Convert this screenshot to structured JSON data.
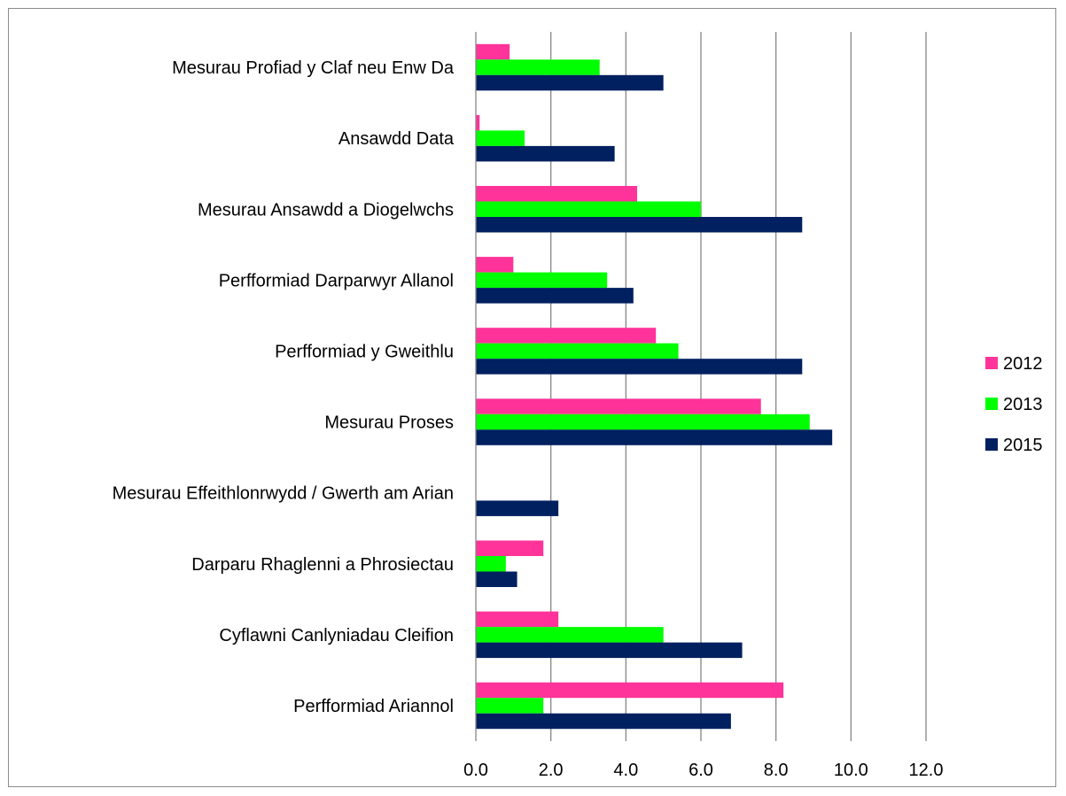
{
  "chart_data": {
    "type": "bar",
    "orientation": "horizontal",
    "categories": [
      "Mesurau Profiad y Claf neu Enw Da",
      "Ansawdd Data",
      "Mesurau Ansawdd a Diogelwchs",
      "Perfformiad Darparwyr Allanol",
      "Perfformiad y Gweithlu",
      "Mesurau Proses",
      "Mesurau Effeithlonrwydd / Gwerth am Arian",
      "Darparu Rhaglenni a Phrosiectau",
      "Cyflawni Canlyniadau Cleifion",
      "Perfformiad Ariannol"
    ],
    "series": [
      {
        "name": "2012",
        "color": "#ff3399",
        "values": [
          0.9,
          0.1,
          4.3,
          1.0,
          4.8,
          7.6,
          0,
          1.8,
          2.2,
          8.2
        ]
      },
      {
        "name": "2013",
        "color": "#00ff00",
        "values": [
          3.3,
          1.3,
          6.0,
          3.5,
          5.4,
          8.9,
          0,
          0.8,
          5.0,
          1.8
        ]
      },
      {
        "name": "2015",
        "color": "#002060",
        "values": [
          5.0,
          3.7,
          8.7,
          4.2,
          8.7,
          9.5,
          2.2,
          1.1,
          7.1,
          6.8
        ]
      }
    ],
    "xticks": [
      "0.0",
      "2.0",
      "4.0",
      "6.0",
      "8.0",
      "10.0",
      "12.0"
    ],
    "xlim": [
      0,
      12
    ],
    "title": "",
    "xlabel": "",
    "ylabel": "",
    "grid": "vertical",
    "legend_position": "right"
  }
}
